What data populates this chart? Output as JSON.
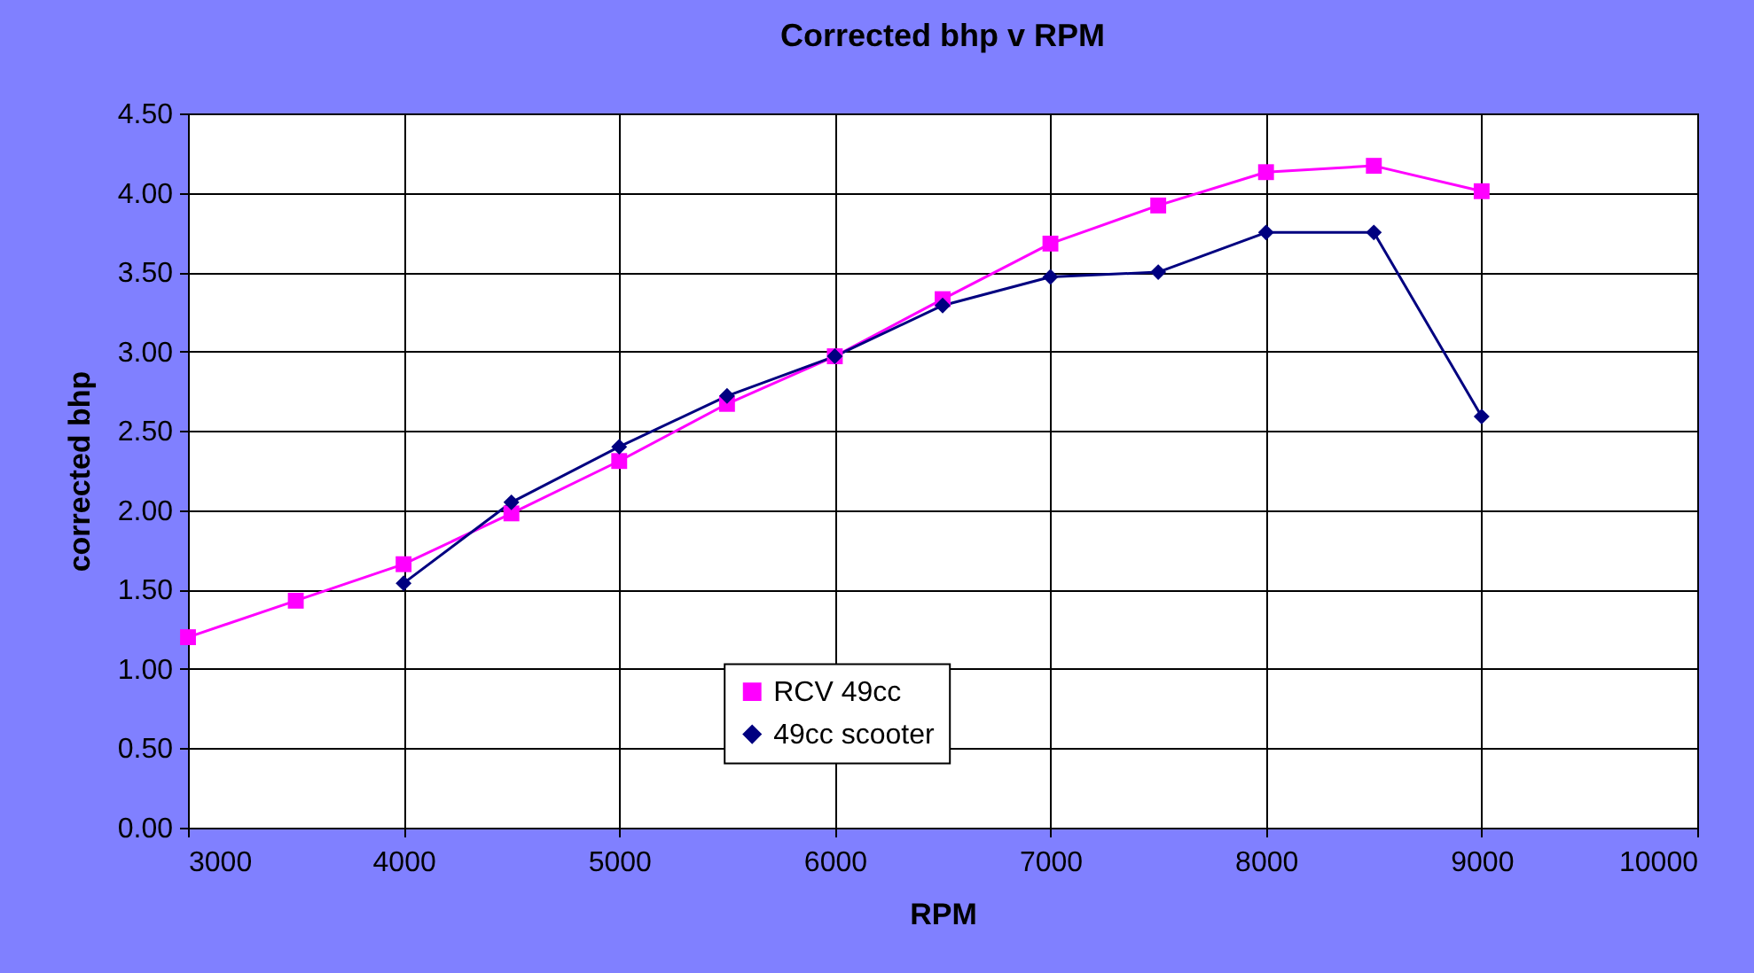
{
  "chart_data": {
    "type": "line",
    "title": "Corrected bhp v RPM",
    "xlabel": "RPM",
    "ylabel": "corrected bhp",
    "x": [
      3000,
      3500,
      4000,
      4500,
      5000,
      5500,
      6000,
      6500,
      7000,
      7500,
      8000,
      8500,
      9000
    ],
    "series": [
      {
        "name": "RCV 49cc",
        "color": "#ff00ff",
        "marker": "square",
        "values": [
          1.2,
          1.43,
          1.66,
          1.98,
          2.31,
          2.67,
          2.97,
          3.33,
          3.68,
          3.92,
          4.13,
          4.17,
          4.01
        ]
      },
      {
        "name": "49cc scooter",
        "color": "#000080",
        "marker": "diamond",
        "values": [
          null,
          null,
          1.54,
          2.05,
          2.4,
          2.72,
          2.97,
          3.29,
          3.47,
          3.5,
          3.75,
          3.75,
          2.59
        ]
      }
    ],
    "xlim": [
      3000,
      10000
    ],
    "xticks": [
      3000,
      4000,
      5000,
      6000,
      7000,
      8000,
      9000,
      10000
    ],
    "ylim": [
      0,
      4.5
    ],
    "yticks": [
      {
        "value": 0,
        "label": "0.00"
      },
      {
        "value": 0.5,
        "label": "0.50"
      },
      {
        "value": 1,
        "label": "1.00"
      },
      {
        "value": 1.5,
        "label": "1.50"
      },
      {
        "value": 2,
        "label": "2.00"
      },
      {
        "value": 2.5,
        "label": "2.50"
      },
      {
        "value": 3,
        "label": "3.00"
      },
      {
        "value": 3.5,
        "label": "3.50"
      },
      {
        "value": 4,
        "label": "4.00"
      },
      {
        "value": 4.5,
        "label": "4.50"
      }
    ],
    "grid": true,
    "legend": "bottom",
    "line_style": "solid"
  }
}
